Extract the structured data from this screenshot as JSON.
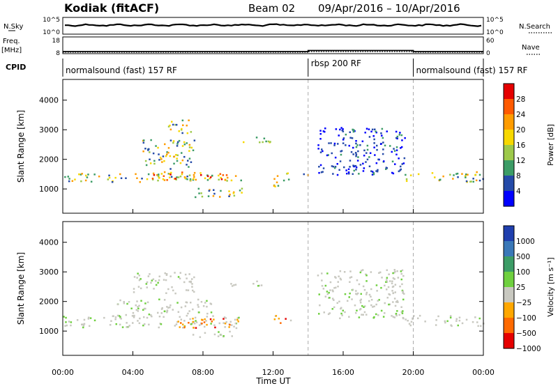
{
  "header": {
    "station": "Kodiak (fitACF)",
    "beam": "Beam 02",
    "dates": "09/Apr/2016 – 10/Apr/2016"
  },
  "top_panels": {
    "nsky_label": "N.Sky",
    "nsky_ticks": [
      "10^5",
      "10^0"
    ],
    "nsearch_label": "N.Search",
    "nsearch_ticks": [
      "10^5",
      "10^0"
    ],
    "freq_label": "Freq.",
    "freq_unit": "[MHz]",
    "freq_ticks": [
      "18",
      "8"
    ],
    "nave_label": "Nave",
    "nave_ticks": [
      "60",
      "0"
    ],
    "cpid_label": "CPID",
    "cpid_segments": [
      {
        "label": "normalsound (fast) 157 RF",
        "start_h": 0,
        "end_h": 14
      },
      {
        "label": "rbsp 200 RF",
        "start_h": 14,
        "end_h": 20
      },
      {
        "label": "normalsound (fast) 157 RF",
        "start_h": 20,
        "end_h": 24
      }
    ]
  },
  "chart_data": [
    {
      "type": "heatmap",
      "panel": "power",
      "ylabel": "Slant Range [km]",
      "xlabel": "Time UT",
      "xlim": [
        0,
        24
      ],
      "ylim": [
        180,
        4700
      ],
      "yticks": [
        1000,
        2000,
        3000,
        4000
      ],
      "xticks": [
        "00:00",
        "04:00",
        "08:00",
        "12:00",
        "16:00",
        "20:00",
        "00:00"
      ],
      "colorbar": {
        "label": "Power [dB]",
        "ticks": [
          "28",
          "24",
          "20",
          "16",
          "12",
          "8",
          "4"
        ],
        "colors": [
          "#e50000",
          "#ff5a00",
          "#ff9c00",
          "#f7d800",
          "#9dc94a",
          "#3c9c66",
          "#244aa8",
          "#0000ff"
        ]
      },
      "echo_bands": [
        {
          "t0": 0.0,
          "t1": 10.3,
          "r0": 1250,
          "r1": 1550,
          "level": "mid"
        },
        {
          "t0": 5.0,
          "t1": 10.0,
          "r0": 1300,
          "r1": 1600,
          "level": "high"
        },
        {
          "t0": 7.0,
          "t1": 10.3,
          "r0": 750,
          "r1": 1050,
          "level": "mid"
        },
        {
          "t0": 4.5,
          "t1": 7.5,
          "r0": 1700,
          "r1": 2700,
          "level": "low"
        },
        {
          "t0": 6.0,
          "t1": 7.5,
          "r0": 2900,
          "r1": 3400,
          "level": "low"
        },
        {
          "t0": 10.0,
          "t1": 12.0,
          "r0": 2600,
          "r1": 2800,
          "level": "low"
        },
        {
          "t0": 12.0,
          "t1": 13.0,
          "r0": 1100,
          "r1": 1600,
          "level": "low"
        },
        {
          "t0": 13.5,
          "t1": 14.0,
          "r0": 1400,
          "r1": 1600,
          "level": "low"
        },
        {
          "t0": 14.5,
          "t1": 19.5,
          "r0": 1500,
          "r1": 3100,
          "level": "trail"
        },
        {
          "t0": 19.5,
          "t1": 24.0,
          "r0": 1250,
          "r1": 1600,
          "level": "mid"
        }
      ]
    },
    {
      "type": "heatmap",
      "panel": "velocity",
      "ylabel": "Slant Range [km]",
      "xlabel": "Time UT",
      "xlim": [
        0,
        24
      ],
      "ylim": [
        180,
        4700
      ],
      "yticks": [
        1000,
        2000,
        3000,
        4000
      ],
      "xticks": [
        "00:00",
        "04:00",
        "08:00",
        "12:00",
        "16:00",
        "20:00",
        "00:00"
      ],
      "colorbar": {
        "label": "Velocity [m s⁻¹]",
        "ticks": [
          "1000",
          "500",
          "100",
          "25",
          "−25",
          "−100",
          "−500",
          "−1000"
        ],
        "colors": [
          "#1f3fae",
          "#3a78b8",
          "#3c9c66",
          "#6fd03f",
          "#c8c8c0",
          "#ffa700",
          "#ff6a00",
          "#e50000"
        ]
      },
      "echo_bands": [
        {
          "t0": 0.0,
          "t1": 10.3,
          "r0": 1150,
          "r1": 1550,
          "level": "ground"
        },
        {
          "t0": 3.0,
          "t1": 8.5,
          "r0": 1500,
          "r1": 2100,
          "level": "ground"
        },
        {
          "t0": 7.0,
          "t1": 10.0,
          "r0": 820,
          "r1": 1020,
          "level": "ground"
        },
        {
          "t0": 6.5,
          "t1": 10.0,
          "r0": 1100,
          "r1": 1500,
          "level": "neg"
        },
        {
          "t0": 4.0,
          "t1": 7.5,
          "r0": 2300,
          "r1": 3000,
          "level": "ground"
        },
        {
          "t0": 9.5,
          "t1": 11.5,
          "r0": 2550,
          "r1": 2750,
          "level": "ground"
        },
        {
          "t0": 12.0,
          "t1": 13.0,
          "r0": 1250,
          "r1": 1550,
          "level": "neg"
        },
        {
          "t0": 14.5,
          "t1": 19.5,
          "r0": 1450,
          "r1": 3100,
          "level": "ground"
        },
        {
          "t0": 19.5,
          "t1": 24.0,
          "r0": 1200,
          "r1": 1550,
          "level": "ground"
        }
      ]
    }
  ]
}
